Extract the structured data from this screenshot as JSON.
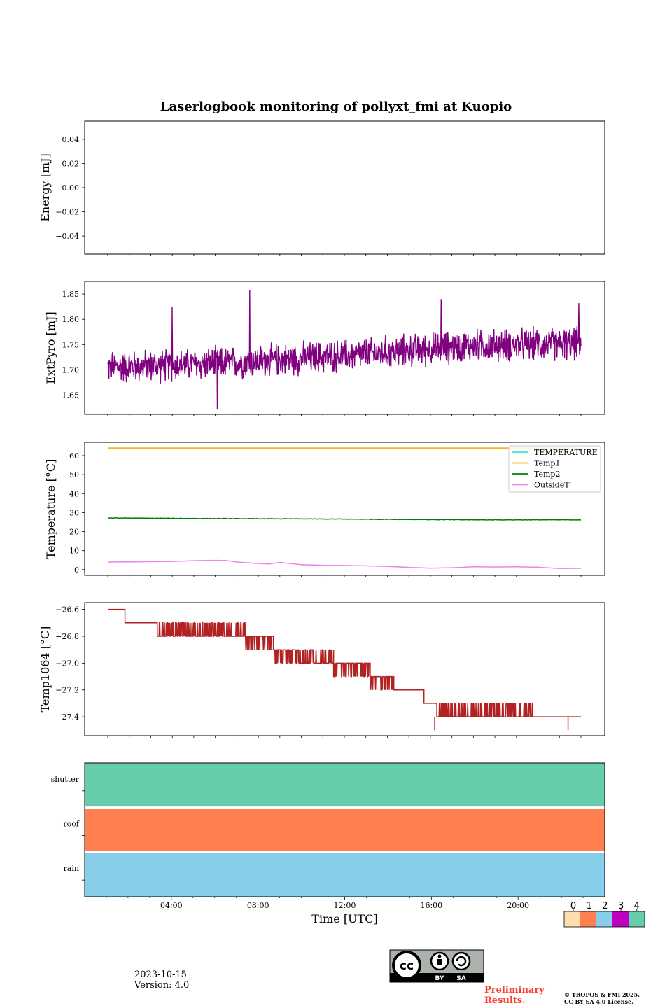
{
  "title": "Laserlogbook monitoring of pollyxt_fmi at Kuopio",
  "chart_data": [
    {
      "type": "line",
      "id": "energy",
      "ylabel": "Energy [mJ]",
      "ylim": [
        -0.055,
        0.055
      ],
      "yticks": [
        0.04,
        0.02,
        0.0,
        -0.02,
        -0.04
      ],
      "ytick_labels": [
        "0.04",
        "0.02",
        "0.00",
        "−0.02",
        "−0.04"
      ],
      "series": []
    },
    {
      "type": "line",
      "id": "extpyro",
      "ylabel": "ExtPyro [mJ]",
      "ylim": [
        1.612,
        1.875
      ],
      "yticks": [
        1.85,
        1.8,
        1.75,
        1.7,
        1.65
      ],
      "ytick_labels": [
        "1.85",
        "1.80",
        "1.75",
        "1.70",
        "1.65"
      ],
      "series": [
        {
          "name": "ExtPyro",
          "color": "#800080",
          "trend": {
            "x": [
              1.0,
              6.0,
              12.0,
              18.0,
              23.0
            ],
            "y": [
              1.705,
              1.712,
              1.728,
              1.748,
              1.752
            ]
          },
          "noise": 0.03,
          "x_range": [
            1.0,
            23.0
          ],
          "spikes": [
            {
              "x": 7.6,
              "y": 1.858
            },
            {
              "x": 6.1,
              "y": 1.623
            },
            {
              "x": 4.0,
              "y": 1.825
            },
            {
              "x": 16.5,
              "y": 1.84
            },
            {
              "x": 22.9,
              "y": 1.832
            }
          ]
        }
      ]
    },
    {
      "type": "line",
      "id": "temperature",
      "ylabel": "Temperature [°C]",
      "ylim": [
        -3,
        67
      ],
      "yticks": [
        60,
        50,
        40,
        30,
        20,
        10,
        0
      ],
      "ytick_labels": [
        "60",
        "50",
        "40",
        "30",
        "20",
        "10",
        "0"
      ],
      "legend": [
        "TEMPERATURE",
        "Temp1",
        "Temp2",
        "OutsideT"
      ],
      "legend_loc": "upper right",
      "series": [
        {
          "name": "TEMPERATURE",
          "color": "#40e0d0",
          "x": [],
          "y": []
        },
        {
          "name": "Temp1",
          "color": "#ffa500",
          "x": [
            1,
            23
          ],
          "y": [
            64,
            64
          ]
        },
        {
          "name": "Temp2",
          "color": "#008000",
          "x": [
            1,
            6,
            12,
            18,
            23
          ],
          "y": [
            27.2,
            26.9,
            26.6,
            26.2,
            26.2
          ]
        },
        {
          "name": "OutsideT",
          "color": "#ee82ee",
          "x": [
            1,
            2,
            3,
            4,
            5,
            6,
            6.5,
            7,
            7.5,
            8,
            8.5,
            9,
            10,
            11,
            12,
            13,
            14,
            15,
            16,
            17,
            18,
            19,
            20,
            21,
            22,
            23
          ],
          "y": [
            4,
            4.1,
            4.2,
            4.3,
            4.7,
            4.9,
            4.8,
            4.0,
            3.6,
            3.2,
            3.0,
            3.8,
            2.6,
            2.3,
            2.2,
            2.0,
            1.7,
            1.2,
            0.8,
            1.0,
            1.5,
            1.4,
            1.5,
            1.3,
            0.6,
            0.7
          ]
        }
      ]
    },
    {
      "type": "line",
      "id": "temp1064",
      "ylabel": "Temp1064 [°C]",
      "ylim": [
        -27.54,
        -26.55
      ],
      "yticks": [
        -26.6,
        -26.8,
        -27.0,
        -27.2,
        -27.4
      ],
      "ytick_labels": [
        "−26.6",
        "−26.8",
        "−27.0",
        "−27.2",
        "−27.4"
      ],
      "series": [
        {
          "name": "Temp1064",
          "color": "#b22222",
          "steps": [
            {
              "x0": 1.0,
              "x1": 1.8,
              "y": -26.6
            },
            {
              "x0": 1.8,
              "x1": 3.3,
              "y": -26.7
            },
            {
              "x0": 3.3,
              "x1": 7.4,
              "y": -26.8,
              "alt": -26.7
            },
            {
              "x0": 7.4,
              "x1": 8.7,
              "y": -26.8,
              "alt": -26.9
            },
            {
              "x0": 8.7,
              "x1": 9.9,
              "y": -26.9,
              "alt": -27.0
            },
            {
              "x0": 9.9,
              "x1": 11.5,
              "y": -27.0,
              "alt": -26.9
            },
            {
              "x0": 11.5,
              "x1": 13.2,
              "y": -27.0,
              "alt": -27.1
            },
            {
              "x0": 13.2,
              "x1": 14.3,
              "y": -27.1,
              "alt": -27.2
            },
            {
              "x0": 14.3,
              "x1": 15.7,
              "y": -27.2
            },
            {
              "x0": 15.7,
              "x1": 16.3,
              "y": -27.3
            },
            {
              "x0": 16.3,
              "x1": 20.8,
              "y": -27.4,
              "alt": -27.3
            },
            {
              "x0": 20.8,
              "x1": 23.0,
              "y": -27.4
            }
          ],
          "spikes": [
            {
              "x": 16.2,
              "y": -27.5
            },
            {
              "x": 22.4,
              "y": -27.5
            }
          ]
        }
      ]
    },
    {
      "type": "heatmap",
      "id": "status",
      "rows": [
        "shutter",
        "roof",
        "rain"
      ],
      "row_values": [
        4,
        1,
        2
      ],
      "xlabel": "Time [UTC]",
      "xlim": [
        0,
        24
      ],
      "xticks": [
        4,
        8,
        12,
        16,
        20
      ],
      "xtick_labels": [
        "04:00",
        "08:00",
        "12:00",
        "16:00",
        "20:00"
      ],
      "colorbar": {
        "labels": [
          "0",
          "1",
          "2",
          "3",
          "4"
        ],
        "colors": [
          "#ffdead",
          "#ff7f50",
          "#87ceeb",
          "#c000c0",
          "#66cdaa"
        ]
      }
    }
  ],
  "footer": {
    "date": "2023-10-15",
    "version": "Version: 4.0",
    "preliminary_line1": "Preliminary",
    "preliminary_line2": "Results.",
    "copyright_line1": "© TROPOS & FMI 2025.",
    "copyright_line2": "CC BY SA 4.0 License.",
    "cc_by": "BY",
    "cc_sa": "SA",
    "cc_mark": "cc"
  }
}
